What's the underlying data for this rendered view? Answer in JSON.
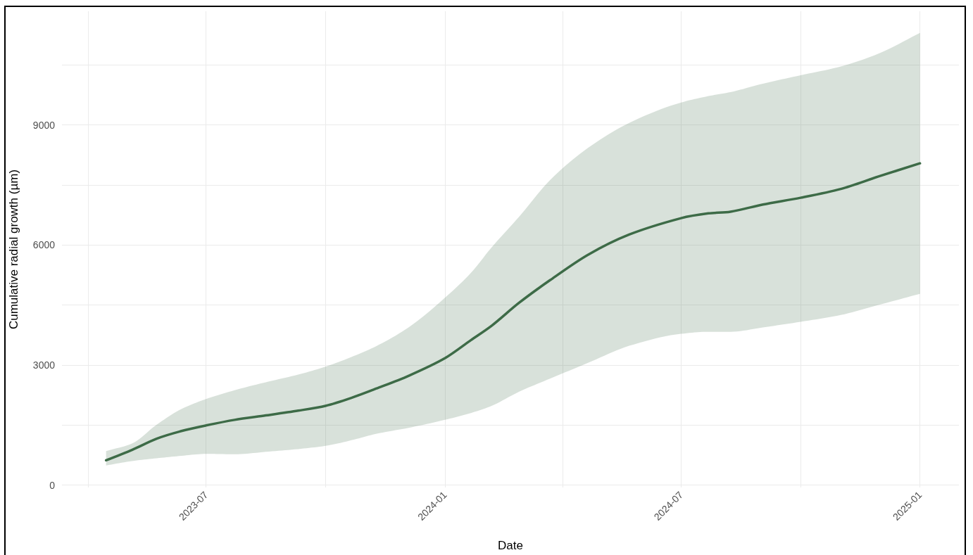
{
  "chart_data": {
    "type": "line",
    "xlabel": "Date",
    "ylabel": "Cumulative radial growth (µm)",
    "x": [
      "2023-04-15",
      "2023-05-05",
      "2023-05-24",
      "2023-06-12",
      "2023-07-01",
      "2023-07-23",
      "2023-08-16",
      "2023-09-10",
      "2023-10-01",
      "2023-10-21",
      "2023-11-09",
      "2023-12-04",
      "2024-01-01",
      "2024-01-21",
      "2024-02-06",
      "2024-02-27",
      "2024-03-22",
      "2024-04-20",
      "2024-05-22",
      "2024-07-01",
      "2024-07-22",
      "2024-08-08",
      "2024-09-02",
      "2024-10-01",
      "2024-11-01",
      "2024-11-30",
      "2025-01-01"
    ],
    "series": [
      {
        "color": "#3d6b47",
        "values": [
          620,
          880,
          1160,
          1350,
          1490,
          1630,
          1740,
          1860,
          1980,
          2180,
          2410,
          2730,
          3170,
          3620,
          3980,
          4550,
          5120,
          5750,
          6260,
          6670,
          6790,
          6830,
          7010,
          7180,
          7400,
          7710,
          8040
        ],
        "lower": [
          490,
          600,
          670,
          730,
          780,
          770,
          830,
          900,
          980,
          1120,
          1280,
          1430,
          1630,
          1800,
          1980,
          2330,
          2660,
          3050,
          3480,
          3780,
          3830,
          3830,
          3940,
          4080,
          4250,
          4500,
          4780
        ],
        "upper": [
          850,
          1040,
          1510,
          1900,
          2150,
          2370,
          2570,
          2760,
          2960,
          3200,
          3470,
          3940,
          4680,
          5300,
          5940,
          6700,
          7620,
          8420,
          9050,
          9560,
          9720,
          9820,
          10030,
          10240,
          10460,
          10780,
          11300
        ]
      }
    ],
    "xlim": [
      "2023-03-12",
      "2025-01-31"
    ],
    "ylim": [
      -60,
      11840
    ],
    "xticks": [
      {
        "value": "2023-04",
        "label": null
      },
      "2023-07",
      {
        "value": "2023-10",
        "label": null
      },
      "2024-01",
      {
        "value": "2024-04",
        "label": null
      },
      "2024-07",
      {
        "value": "2024-10",
        "label": null
      },
      "2025-01"
    ],
    "yticks": [
      0,
      {
        "value": 1500,
        "label": null
      },
      3000,
      {
        "value": 4500,
        "label": null
      },
      6000,
      {
        "value": 7500,
        "label": null
      },
      9000,
      {
        "value": 10500,
        "label": null
      }
    ],
    "grid": true,
    "line_style": "solid"
  }
}
